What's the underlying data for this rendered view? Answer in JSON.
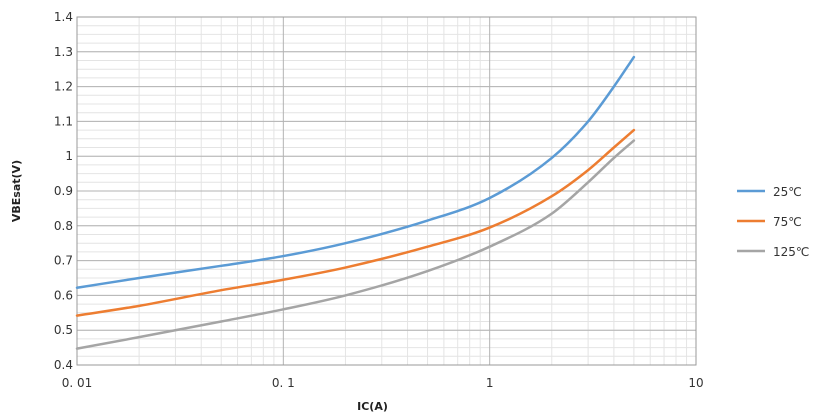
{
  "chart_data": {
    "type": "line",
    "title": "",
    "xlabel": "IC(A)",
    "ylabel": "VBEsat(V)",
    "xscale": "log",
    "xlim": [
      0.01,
      10
    ],
    "ylim": [
      0.4,
      1.4
    ],
    "x_tick_labels": [
      "0. 01",
      "0. 1",
      "1",
      "10"
    ],
    "x_tick_values": [
      0.01,
      0.1,
      1,
      10
    ],
    "y_tick_labels": [
      "0.4",
      "0.5",
      "0.6",
      "0.7",
      "0.8",
      "0.9",
      "1",
      "1.1",
      "1.2",
      "1.3",
      "1.4"
    ],
    "y_tick_values": [
      0.4,
      0.5,
      0.6,
      0.7,
      0.8,
      0.9,
      1.0,
      1.1,
      1.2,
      1.3,
      1.4
    ],
    "grid": true,
    "legend_position": "right",
    "series": [
      {
        "name": "25℃",
        "color": "#5b9bd5",
        "x": [
          0.01,
          0.02,
          0.05,
          0.1,
          0.2,
          0.5,
          1,
          2,
          3,
          4,
          5
        ],
        "y": [
          0.622,
          0.65,
          0.685,
          0.713,
          0.75,
          0.815,
          0.88,
          0.995,
          1.1,
          1.2,
          1.285
        ]
      },
      {
        "name": "75℃",
        "color": "#ed7d31",
        "x": [
          0.01,
          0.02,
          0.05,
          0.1,
          0.2,
          0.5,
          1,
          2,
          3,
          4,
          5
        ],
        "y": [
          0.542,
          0.57,
          0.615,
          0.645,
          0.68,
          0.74,
          0.795,
          0.885,
          0.96,
          1.025,
          1.075
        ]
      },
      {
        "name": "125℃",
        "color": "#a5a5a5",
        "x": [
          0.01,
          0.02,
          0.05,
          0.1,
          0.2,
          0.5,
          1,
          2,
          3,
          4,
          5
        ],
        "y": [
          0.447,
          0.48,
          0.525,
          0.56,
          0.6,
          0.67,
          0.74,
          0.835,
          0.925,
          0.995,
          1.045
        ]
      }
    ]
  }
}
